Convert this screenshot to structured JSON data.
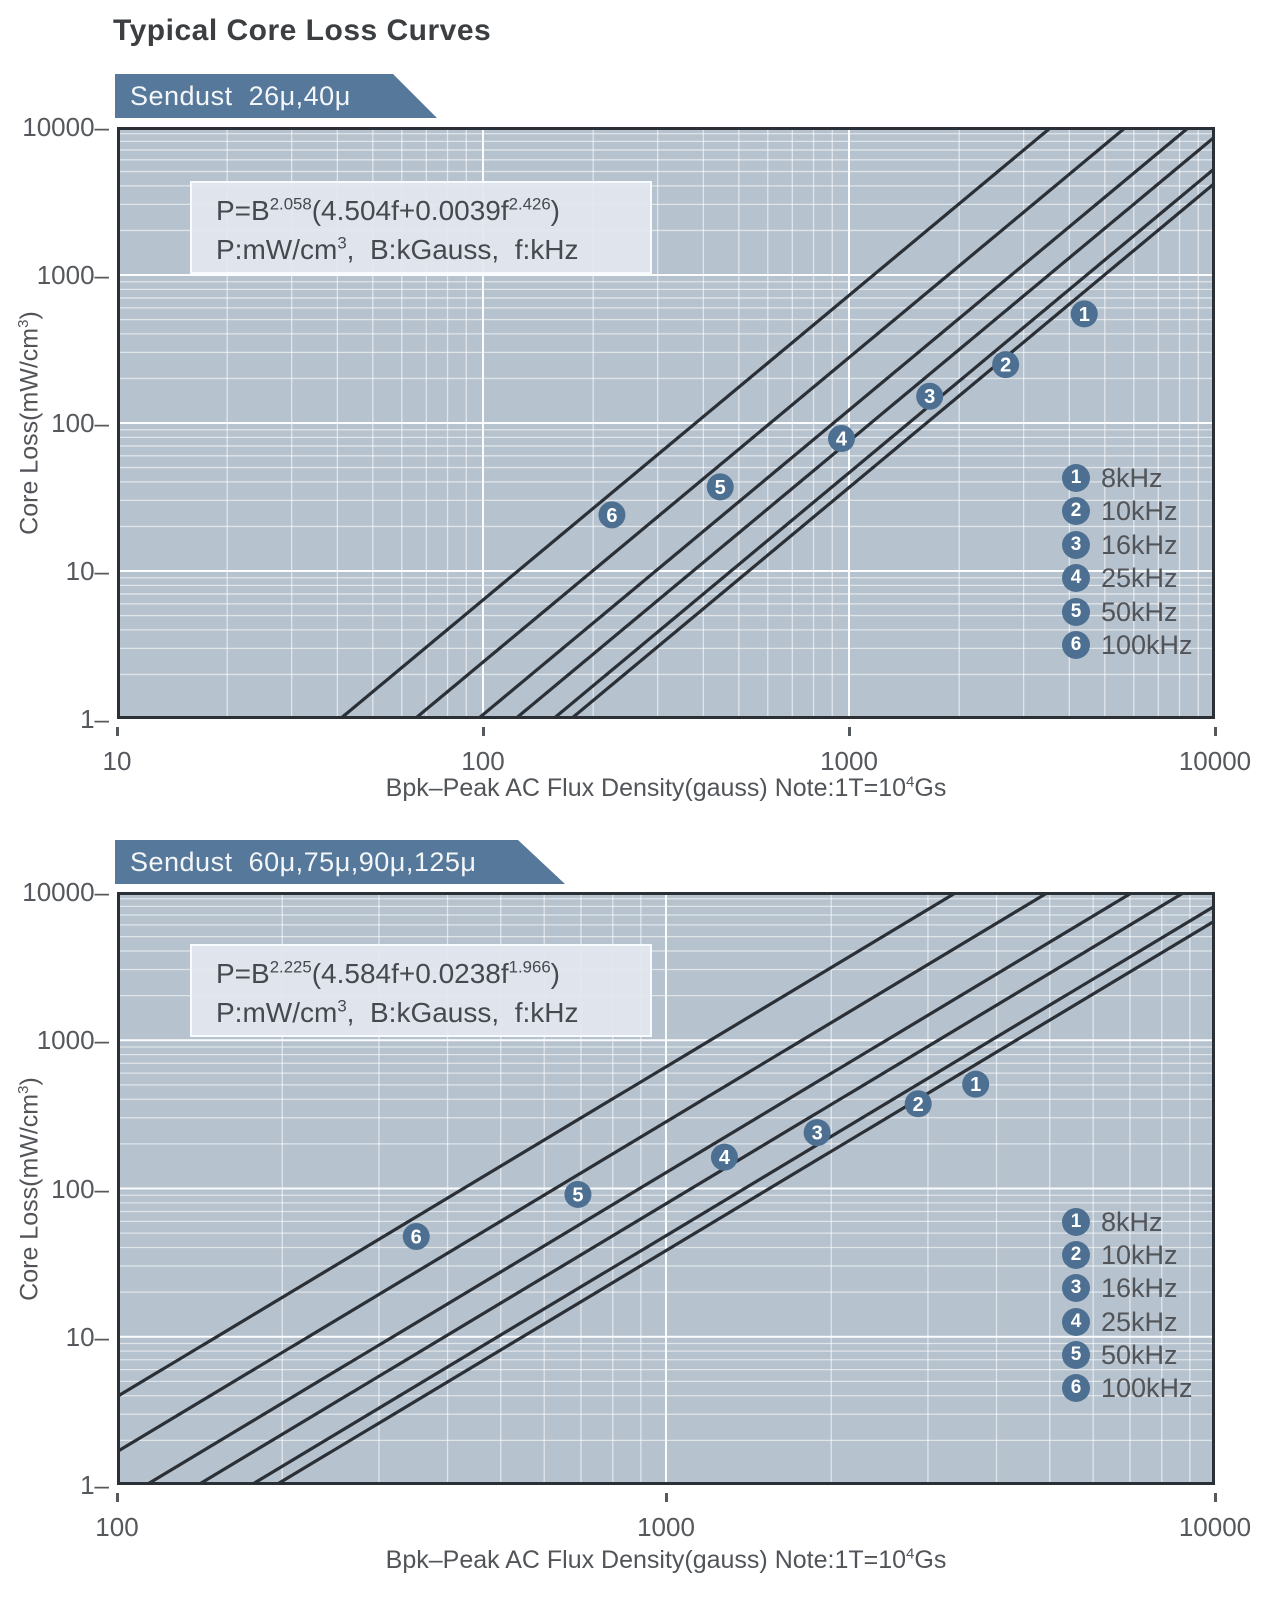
{
  "title": "Typical Core Loss Curves",
  "colors": {
    "banner_bg": "#56789a",
    "banner_text": "#f4f7f9",
    "plot_bg": "#b6c2ce",
    "grid_major": "rgba(255,255,255,0.95)",
    "grid_minor": "rgba(255,255,255,0.58)",
    "curve": "#2b3037",
    "plot_border": "#2b3037",
    "badge_bg": "#4d7092",
    "badge_text": "#ffffff",
    "title_text": "#3c3f42",
    "tick_text": "#55585c",
    "axis_label_text": "#515458",
    "formula_box_bg": "rgba(227,231,238,0.95)",
    "formula_box_border": "rgba(250,252,255,0.9)",
    "formula_text": "#46494e"
  },
  "chart_data": [
    {
      "type": "line",
      "log_x": true,
      "log_y": true,
      "grid": true,
      "banner": "Sendust  26μ,40μ",
      "formula_text": "P=B^2.058(4.504f+0.0039f^2.426)",
      "units_text": "P:mW/cm³, B:kGauss, f:kHz",
      "formula_segments": [
        {
          "t": "P=B"
        },
        {
          "sup": "2.058"
        },
        {
          "t": "(4.504f+0.0039f"
        },
        {
          "sup": "2.426"
        },
        {
          "t": ")"
        }
      ],
      "units_segments": [
        {
          "t": "P:mW/cm"
        },
        {
          "sup": "3"
        },
        {
          "t": ",  B:kGauss,  f:kHz"
        }
      ],
      "coefficients": {
        "b_exponent": 2.058,
        "f_linear": 4.504,
        "f_coef": 0.0039,
        "f_exponent": 2.426
      },
      "x_axis": {
        "label_text": "Bpk–Peak AC Flux Density(gauss) Note:1T=10⁴Gs",
        "label_segments": [
          {
            "t": "Bpk–Peak AC Flux Density(gauss) Note:1T=10"
          },
          {
            "sup": "4"
          },
          {
            "t": "Gs"
          }
        ],
        "min": 10,
        "max": 10000,
        "ticks": [
          10,
          100,
          1000,
          10000
        ],
        "tick_labels": [
          "10",
          "100",
          "1000",
          "10000"
        ]
      },
      "y_axis": {
        "label_text": "Core Loss(mW/cm³)",
        "label_segments": [
          {
            "t": "Core Loss(mW/cm"
          },
          {
            "sup": "3"
          },
          {
            "t": ")"
          }
        ],
        "min": 1,
        "max": 10000,
        "ticks": [
          1,
          10,
          100,
          1000,
          10000
        ],
        "tick_labels_top_down": [
          "10000–",
          "1000–",
          "100–",
          "10–",
          "1–"
        ]
      },
      "legend_position": "lower right",
      "series": [
        {
          "index": 1,
          "label": "8kHz",
          "f_khz": 8,
          "marker_b_gauss": 4100,
          "points_gauss_mw": [
            [
              100,
              0.32
            ],
            [
              1000,
              36.6
            ],
            [
              10000,
              4190
            ]
          ]
        },
        {
          "index": 2,
          "label": "10kHz",
          "f_khz": 10,
          "marker_b_gauss": 2500,
          "points_gauss_mw": [
            [
              100,
              0.4
            ],
            [
              1000,
              46.1
            ],
            [
              10000,
              5270
            ]
          ]
        },
        {
          "index": 3,
          "label": "16kHz",
          "f_khz": 16,
          "marker_b_gauss": 1550,
          "points_gauss_mw": [
            [
              100,
              0.66
            ],
            [
              1000,
              75.3
            ],
            [
              10000,
              8610
            ]
          ]
        },
        {
          "index": 4,
          "label": "25kHz",
          "f_khz": 25,
          "marker_b_gauss": 890,
          "points_gauss_mw": [
            [
              100,
              1.07
            ],
            [
              1000,
              122
            ],
            [
              10000,
              13970
            ]
          ]
        },
        {
          "index": 5,
          "label": "50kHz",
          "f_khz": 50,
          "marker_b_gauss": 415,
          "points_gauss_mw": [
            [
              100,
              2.4
            ],
            [
              1000,
              277
            ],
            [
              10000,
              31600
            ]
          ]
        },
        {
          "index": 6,
          "label": "100kHz",
          "f_khz": 100,
          "marker_b_gauss": 210,
          "points_gauss_mw": [
            [
              100,
              6.4
            ],
            [
              1000,
              727
            ],
            [
              10000,
              83100
            ]
          ]
        }
      ]
    },
    {
      "type": "line",
      "log_x": true,
      "log_y": true,
      "grid": true,
      "banner": "Sendust  60μ,75μ,90μ,125μ",
      "formula_text": "P=B^2.225(4.584f+0.0238f^1.966)",
      "units_text": "P:mW/cm³, B:kGauss, f:kHz",
      "formula_segments": [
        {
          "t": "P=B"
        },
        {
          "sup": "2.225"
        },
        {
          "t": "(4.584f+0.0238f"
        },
        {
          "sup": "1.966"
        },
        {
          "t": ")"
        }
      ],
      "units_segments": [
        {
          "t": "P:mW/cm"
        },
        {
          "sup": "3"
        },
        {
          "t": ",  B:kGauss,  f:kHz"
        }
      ],
      "coefficients": {
        "b_exponent": 2.225,
        "f_linear": 4.584,
        "f_coef": 0.0238,
        "f_exponent": 1.966
      },
      "x_axis": {
        "label_text": "Bpk–Peak AC Flux Density(gauss) Note:1T=10⁴Gs",
        "label_segments": [
          {
            "t": "Bpk–Peak AC Flux Density(gauss) Note:1T=10"
          },
          {
            "sup": "4"
          },
          {
            "t": "Gs"
          }
        ],
        "min": 100,
        "max": 10000,
        "ticks": [
          100,
          1000,
          10000
        ],
        "tick_labels": [
          "100",
          "1000",
          "10000"
        ]
      },
      "y_axis": {
        "label_text": "Core Loss(mW/cm³)",
        "label_segments": [
          {
            "t": "Core Loss(mW/cm"
          },
          {
            "sup": "3"
          },
          {
            "t": ")"
          }
        ],
        "min": 1,
        "max": 10000,
        "ticks": [
          1,
          10,
          100,
          1000,
          10000
        ],
        "tick_labels_top_down": [
          "10000–",
          "1000–",
          "100–",
          "10–",
          "1–"
        ]
      },
      "legend_position": "lower right",
      "series": [
        {
          "index": 1,
          "label": "8kHz",
          "f_khz": 8,
          "marker_b_gauss": 3500,
          "points_gauss_mw": [
            [
              100,
              0.23
            ],
            [
              1000,
              38.1
            ],
            [
              10000,
              6400
            ]
          ]
        },
        {
          "index": 2,
          "label": "10kHz",
          "f_khz": 10,
          "marker_b_gauss": 2750,
          "points_gauss_mw": [
            [
              100,
              0.29
            ],
            [
              1000,
              48.0
            ],
            [
              10000,
              8070
            ]
          ]
        },
        {
          "index": 3,
          "label": "16kHz",
          "f_khz": 16,
          "marker_b_gauss": 1800,
          "points_gauss_mw": [
            [
              100,
              0.47
            ],
            [
              1000,
              78.9
            ],
            [
              10000,
              13250
            ]
          ]
        },
        {
          "index": 4,
          "label": "25kHz",
          "f_khz": 25,
          "marker_b_gauss": 1220,
          "points_gauss_mw": [
            [
              100,
              0.76
            ],
            [
              1000,
              128
            ],
            [
              10000,
              21470
            ]
          ]
        },
        {
          "index": 5,
          "label": "50kHz",
          "f_khz": 50,
          "marker_b_gauss": 660,
          "points_gauss_mw": [
            [
              100,
              1.7
            ],
            [
              1000,
              281
            ],
            [
              10000,
              47200
            ]
          ]
        },
        {
          "index": 6,
          "label": "100kHz",
          "f_khz": 100,
          "marker_b_gauss": 335,
          "points_gauss_mw": [
            [
              100,
              3.9
            ],
            [
              1000,
              662
            ],
            [
              10000,
              111200
            ]
          ]
        }
      ]
    }
  ]
}
